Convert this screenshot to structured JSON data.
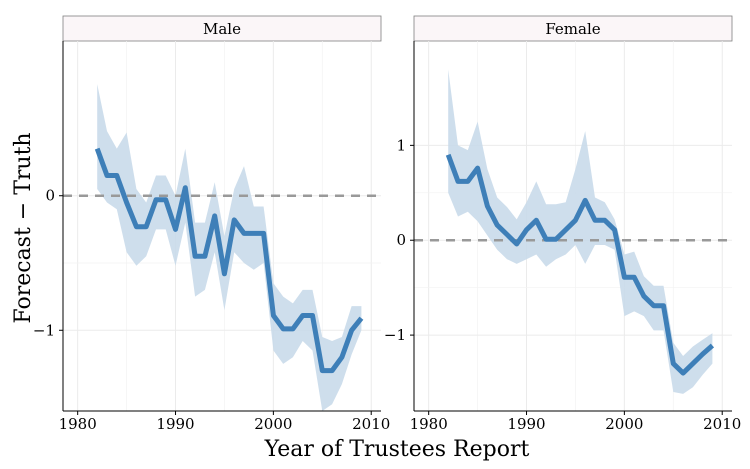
{
  "chart_data": {
    "type": "line",
    "xlabel": "Year of Trustees Report",
    "ylabel": "Forecast − Truth",
    "reference_line": {
      "y": 0,
      "style": "dashed"
    },
    "colors": {
      "line": "#3e7fb8",
      "band": "#c9daea",
      "reference": "#999999",
      "strip_bg": "#fbf6f8"
    },
    "grid": true,
    "panels": [
      {
        "strip": "Male",
        "xlim": [
          1978.5,
          2011
        ],
        "ylim": [
          -1.6,
          1.15
        ],
        "xticks": [
          {
            "v": 1980,
            "label": "1980"
          },
          {
            "v": 1990,
            "label": "1990"
          },
          {
            "v": 2000,
            "label": "2000"
          },
          {
            "v": 2010,
            "label": "2010"
          }
        ],
        "yticks": [
          {
            "v": -1,
            "label": "−1"
          },
          {
            "v": 0,
            "label": "0"
          }
        ],
        "series": {
          "x": [
            1982,
            1983,
            1984,
            1985,
            1986,
            1987,
            1988,
            1989,
            1990,
            1991,
            1992,
            1993,
            1994,
            1995,
            1996,
            1997,
            1998,
            1999,
            2000,
            2001,
            2002,
            2003,
            2004,
            2005,
            2006,
            2007,
            2008,
            2009
          ],
          "y": [
            0.35,
            0.15,
            0.15,
            -0.05,
            -0.23,
            -0.23,
            -0.03,
            -0.03,
            -0.25,
            0.06,
            -0.45,
            -0.45,
            -0.15,
            -0.58,
            -0.18,
            -0.28,
            -0.28,
            -0.28,
            -0.89,
            -0.99,
            -0.99,
            -0.89,
            -0.89,
            -1.3,
            -1.3,
            -1.2,
            -1.0,
            -0.91
          ],
          "lower": [
            0.05,
            -0.05,
            -0.1,
            -0.42,
            -0.52,
            -0.45,
            -0.25,
            -0.25,
            -0.52,
            -0.2,
            -0.75,
            -0.7,
            -0.42,
            -0.85,
            -0.42,
            -0.5,
            -0.55,
            -0.5,
            -1.15,
            -1.25,
            -1.2,
            -1.08,
            -1.15,
            -1.6,
            -1.55,
            -1.4,
            -1.18,
            -1.0
          ],
          "upper": [
            0.83,
            0.48,
            0.35,
            0.47,
            0.05,
            -0.05,
            0.15,
            0.15,
            0.0,
            0.35,
            -0.2,
            -0.2,
            0.1,
            -0.3,
            0.05,
            0.22,
            -0.08,
            -0.08,
            -0.65,
            -0.75,
            -0.8,
            -0.7,
            -0.7,
            -1.05,
            -1.08,
            -1.05,
            -0.82,
            -0.82
          ]
        }
      },
      {
        "strip": "Female",
        "xlim": [
          1978.5,
          2011
        ],
        "ylim": [
          -1.8,
          2.1
        ],
        "xticks": [
          {
            "v": 1980,
            "label": "1980"
          },
          {
            "v": 1990,
            "label": "1990"
          },
          {
            "v": 2000,
            "label": "2000"
          },
          {
            "v": 2010,
            "label": "2010"
          }
        ],
        "yticks": [
          {
            "v": -1,
            "label": "−1"
          },
          {
            "v": 0,
            "label": "0"
          },
          {
            "v": 1,
            "label": "1"
          }
        ],
        "series": {
          "x": [
            1982,
            1983,
            1984,
            1985,
            1986,
            1987,
            1988,
            1989,
            1990,
            1991,
            1992,
            1993,
            1994,
            1995,
            1996,
            1997,
            1998,
            1999,
            2000,
            2001,
            2002,
            2003,
            2004,
            2005,
            2006,
            2007,
            2008,
            2009
          ],
          "y": [
            0.9,
            0.62,
            0.62,
            0.76,
            0.36,
            0.16,
            0.06,
            -0.04,
            0.11,
            0.21,
            0.01,
            0.01,
            0.11,
            0.21,
            0.42,
            0.21,
            0.21,
            0.11,
            -0.39,
            -0.39,
            -0.59,
            -0.69,
            -0.69,
            -1.3,
            -1.4,
            -1.3,
            -1.2,
            -1.11
          ],
          "lower": [
            0.5,
            0.25,
            0.3,
            0.2,
            0.05,
            -0.1,
            -0.2,
            -0.25,
            -0.2,
            -0.15,
            -0.28,
            -0.2,
            -0.15,
            -0.05,
            -0.25,
            -0.05,
            -0.05,
            -0.1,
            -0.8,
            -0.75,
            -0.8,
            -0.95,
            -0.95,
            -1.6,
            -1.62,
            -1.55,
            -1.42,
            -1.3
          ],
          "upper": [
            1.8,
            1.0,
            0.95,
            1.25,
            0.75,
            0.45,
            0.35,
            0.22,
            0.4,
            0.62,
            0.38,
            0.38,
            0.4,
            0.75,
            1.15,
            0.45,
            0.4,
            0.22,
            -0.15,
            -0.12,
            -0.38,
            -0.48,
            -0.48,
            -1.08,
            -1.22,
            -1.12,
            -1.05,
            -0.98
          ]
        }
      }
    ]
  }
}
